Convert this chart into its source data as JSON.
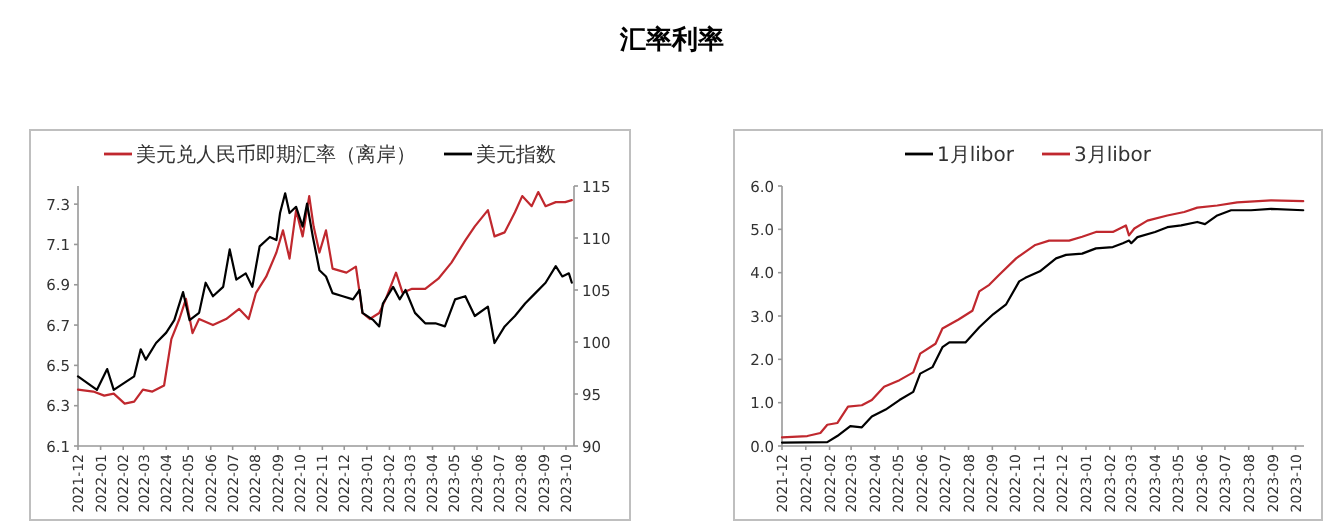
{
  "chart_data": [
    {
      "type": "line",
      "title": "汇率利率",
      "legend": "top",
      "xlim": [
        "2021-12-01",
        "2023-10-12"
      ],
      "xticks": [
        "2021-12",
        "2022-01",
        "2022-02",
        "2022-03",
        "2022-04",
        "2022-05",
        "2022-06",
        "2022-07",
        "2022-08",
        "2022-09",
        "2022-10",
        "2022-11",
        "2022-12",
        "2023-01",
        "2023-02",
        "2023-03",
        "2023-04",
        "2023-05",
        "2023-06",
        "2023-07",
        "2023-08",
        "2023-09",
        "2023-10"
      ],
      "ylim": [
        6.1,
        7.39
      ],
      "yticks": [
        6.1,
        6.3,
        6.5,
        6.7,
        6.9,
        7.1,
        7.3
      ],
      "y2lim": [
        90,
        115
      ],
      "y2ticks": [
        90,
        95,
        100,
        105,
        110,
        115
      ],
      "series": [
        {
          "name": "美元兑人民币即期汇率（离岸）",
          "color": "#c0282e",
          "axis": "y",
          "x": [
            "2021-12-01",
            "2021-12-22",
            "2022-01-06",
            "2022-01-19",
            "2022-02-03",
            "2022-02-16",
            "2022-02-28",
            "2022-03-13",
            "2022-03-29",
            "2022-04-08",
            "2022-04-19",
            "2022-04-28",
            "2022-05-07",
            "2022-05-16",
            "2022-06-04",
            "2022-06-22",
            "2022-07-10",
            "2022-07-23",
            "2022-08-02",
            "2022-08-16",
            "2022-08-30",
            "2022-09-08",
            "2022-09-17",
            "2022-09-26",
            "2022-10-05",
            "2022-10-14",
            "2022-10-20",
            "2022-10-28",
            "2022-11-06",
            "2022-11-15",
            "2022-12-04",
            "2022-12-17",
            "2022-12-26",
            "2023-01-05",
            "2023-01-18",
            "2023-01-27",
            "2023-02-10",
            "2023-02-19",
            "2023-03-04",
            "2023-03-22",
            "2023-04-09",
            "2023-04-27",
            "2023-05-16",
            "2023-05-29",
            "2023-06-16",
            "2023-06-25",
            "2023-07-09",
            "2023-07-23",
            "2023-08-02",
            "2023-08-15",
            "2023-08-24",
            "2023-09-03",
            "2023-09-17",
            "2023-09-30",
            "2023-10-09"
          ],
          "values": [
            6.38,
            6.37,
            6.35,
            6.36,
            6.31,
            6.32,
            6.38,
            6.37,
            6.4,
            6.63,
            6.73,
            6.83,
            6.66,
            6.73,
            6.7,
            6.73,
            6.78,
            6.73,
            6.86,
            6.94,
            7.06,
            7.17,
            7.03,
            7.27,
            7.14,
            7.34,
            7.19,
            7.06,
            7.17,
            6.98,
            6.96,
            6.99,
            6.76,
            6.73,
            6.76,
            6.83,
            6.96,
            6.86,
            6.88,
            6.88,
            6.93,
            7.01,
            7.12,
            7.19,
            7.27,
            7.14,
            7.16,
            7.26,
            7.34,
            7.29,
            7.36,
            7.29,
            7.31,
            7.31,
            7.32
          ]
        },
        {
          "name": "美元指数",
          "color": "#000000",
          "axis": "y2",
          "x": [
            "2021-12-01",
            "2021-12-13",
            "2021-12-27",
            "2022-01-10",
            "2022-01-19",
            "2022-02-03",
            "2022-02-16",
            "2022-02-25",
            "2022-03-04",
            "2022-03-18",
            "2022-04-01",
            "2022-04-12",
            "2022-04-24",
            "2022-05-03",
            "2022-05-16",
            "2022-05-25",
            "2022-06-04",
            "2022-06-18",
            "2022-06-27",
            "2022-07-06",
            "2022-07-19",
            "2022-07-28",
            "2022-08-07",
            "2022-08-21",
            "2022-08-30",
            "2022-09-04",
            "2022-09-11",
            "2022-09-17",
            "2022-09-26",
            "2022-10-05",
            "2022-10-11",
            "2022-10-19",
            "2022-10-28",
            "2022-11-06",
            "2022-11-15",
            "2022-11-29",
            "2022-12-13",
            "2022-12-22",
            "2022-12-26",
            "2023-01-10",
            "2023-01-18",
            "2023-01-23",
            "2023-02-06",
            "2023-02-15",
            "2023-02-23",
            "2023-03-08",
            "2023-03-22",
            "2023-04-05",
            "2023-04-18",
            "2023-05-02",
            "2023-05-16",
            "2023-05-29",
            "2023-06-16",
            "2023-06-25",
            "2023-07-09",
            "2023-07-23",
            "2023-08-06",
            "2023-08-20",
            "2023-09-03",
            "2023-09-17",
            "2023-09-26",
            "2023-10-05",
            "2023-10-09"
          ],
          "values": [
            96.7,
            96.1,
            95.4,
            97.4,
            95.4,
            96.1,
            96.7,
            99.3,
            98.3,
            99.9,
            100.9,
            102.1,
            104.8,
            102.1,
            102.8,
            105.7,
            104.4,
            105.3,
            108.9,
            106.0,
            106.6,
            105.3,
            109.2,
            110.1,
            109.8,
            112.4,
            114.3,
            112.4,
            113.0,
            111.1,
            113.3,
            110.1,
            106.9,
            106.3,
            104.7,
            104.4,
            104.1,
            105.0,
            102.8,
            102.1,
            101.5,
            103.7,
            105.3,
            104.1,
            105.0,
            102.8,
            101.8,
            101.8,
            101.5,
            104.1,
            104.4,
            102.5,
            103.4,
            99.9,
            101.5,
            102.5,
            103.7,
            104.7,
            105.7,
            107.3,
            106.3,
            106.6,
            105.7
          ]
        }
      ]
    },
    {
      "type": "line",
      "legend": "top",
      "xlim": [
        "2021-12-01",
        "2023-10-12"
      ],
      "xticks": [
        "2021-12",
        "2022-01",
        "2022-02",
        "2022-03",
        "2022-04",
        "2022-05",
        "2022-06",
        "2022-07",
        "2022-08",
        "2022-09",
        "2022-10",
        "2022-11",
        "2022-12",
        "2023-01",
        "2023-02",
        "2023-03",
        "2023-04",
        "2023-05",
        "2023-06",
        "2023-07",
        "2023-08",
        "2023-09",
        "2023-10"
      ],
      "ylim": [
        0,
        6
      ],
      "yticks": [
        {
          "value": 0,
          "label": "0.0"
        },
        {
          "value": 1,
          "label": "1.0"
        },
        {
          "value": 2,
          "label": "2.0"
        },
        {
          "value": 3,
          "label": "3.0"
        },
        {
          "value": 4,
          "label": "4.0"
        },
        {
          "value": 5,
          "label": "5.0"
        },
        {
          "value": 6,
          "label": "6.0"
        }
      ],
      "series": [
        {
          "name": "1月libor",
          "color": "#000000",
          "x": [
            "2021-12-01",
            "2022-01-29",
            "2022-02-11",
            "2022-02-28",
            "2022-03-15",
            "2022-03-28",
            "2022-04-15",
            "2022-05-03",
            "2022-05-21",
            "2022-05-30",
            "2022-06-15",
            "2022-06-28",
            "2022-07-07",
            "2022-07-28",
            "2022-08-15",
            "2022-09-02",
            "2022-09-19",
            "2022-10-06",
            "2022-10-14",
            "2022-11-02",
            "2022-11-23",
            "2022-12-06",
            "2022-12-27",
            "2023-01-14",
            "2023-02-05",
            "2023-02-18",
            "2023-02-26",
            "2023-03-01",
            "2023-03-09",
            "2023-04-01",
            "2023-04-17",
            "2023-05-05",
            "2023-05-26",
            "2023-06-05",
            "2023-06-21",
            "2023-07-09",
            "2023-08-04",
            "2023-08-30",
            "2023-10-11"
          ],
          "values": [
            0.08,
            0.09,
            0.23,
            0.46,
            0.43,
            0.68,
            0.84,
            1.06,
            1.25,
            1.67,
            1.82,
            2.28,
            2.39,
            2.39,
            2.74,
            3.04,
            3.27,
            3.8,
            3.88,
            4.03,
            4.33,
            4.41,
            4.44,
            4.56,
            4.59,
            4.68,
            4.74,
            4.68,
            4.82,
            4.94,
            5.05,
            5.09,
            5.17,
            5.12,
            5.32,
            5.44,
            5.44,
            5.47,
            5.44
          ]
        },
        {
          "name": "3月libor",
          "color": "#c0282e",
          "x": [
            "2021-12-01",
            "2022-01-03",
            "2022-01-20",
            "2022-01-29",
            "2022-02-11",
            "2022-02-25",
            "2022-03-15",
            "2022-03-28",
            "2022-04-13",
            "2022-05-03",
            "2022-05-21",
            "2022-05-30",
            "2022-06-19",
            "2022-06-28",
            "2022-07-19",
            "2022-08-06",
            "2022-08-15",
            "2022-08-28",
            "2022-09-10",
            "2022-10-02",
            "2022-10-14",
            "2022-10-27",
            "2022-11-14",
            "2022-12-10",
            "2022-12-27",
            "2023-01-14",
            "2023-02-05",
            "2023-02-22",
            "2023-02-26",
            "2023-03-05",
            "2023-03-22",
            "2023-04-17",
            "2023-05-09",
            "2023-05-26",
            "2023-06-21",
            "2023-07-17",
            "2023-08-30",
            "2023-10-11"
          ],
          "values": [
            0.2,
            0.23,
            0.3,
            0.49,
            0.53,
            0.91,
            0.94,
            1.06,
            1.37,
            1.52,
            1.7,
            2.13,
            2.36,
            2.71,
            2.92,
            3.12,
            3.57,
            3.72,
            3.95,
            4.33,
            4.48,
            4.64,
            4.74,
            4.74,
            4.83,
            4.94,
            4.94,
            5.09,
            4.86,
            5.02,
            5.2,
            5.32,
            5.4,
            5.5,
            5.55,
            5.62,
            5.67,
            5.65
          ]
        }
      ]
    }
  ]
}
